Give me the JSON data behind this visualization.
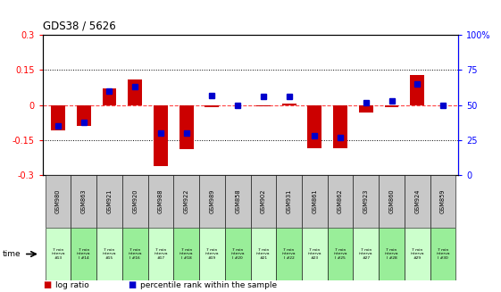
{
  "title": "GDS38 / 5626",
  "samples": [
    "GSM980",
    "GSM863",
    "GSM921",
    "GSM920",
    "GSM988",
    "GSM922",
    "GSM989",
    "GSM858",
    "GSM902",
    "GSM931",
    "GSM861",
    "GSM862",
    "GSM923",
    "GSM860",
    "GSM924",
    "GSM859"
  ],
  "time_labels": [
    "7 min\ninterva\n#13",
    "7 min\ninterva\nl #14",
    "7 min\ninterva\n#15",
    "7 min\ninterva\nl #16",
    "7 min\ninterva\n#17",
    "7 min\ninterva\nl #18",
    "7 min\ninterva\n#19",
    "7 min\ninterva\nl #20",
    "7 min\ninterva\n#21",
    "7 min\ninterva\nl #22",
    "7 min\ninterva\n#23",
    "7 min\ninterva\nl #25",
    "7 min\ninterva\n#27",
    "7 min\ninterva\nl #28",
    "7 min\ninterva\n#29",
    "7 min\ninterva\nl #30"
  ],
  "log_ratio": [
    -0.11,
    -0.09,
    0.07,
    0.11,
    -0.26,
    -0.19,
    -0.01,
    0.0,
    -0.005,
    0.005,
    -0.185,
    -0.185,
    -0.03,
    -0.01,
    0.13,
    0.0
  ],
  "percentile": [
    35,
    38,
    60,
    63,
    30,
    30,
    57,
    50,
    56,
    56,
    28,
    27,
    52,
    53,
    65,
    50
  ],
  "ylim": [
    -0.3,
    0.3
  ],
  "y2lim": [
    0,
    100
  ],
  "yticks": [
    -0.3,
    -0.15,
    0,
    0.15,
    0.3
  ],
  "y2ticks": [
    0,
    25,
    50,
    75,
    100
  ],
  "bar_color": "#cc0000",
  "dot_color": "#0000cc",
  "zero_line_color": "#ff4444",
  "grid_color": "#000000",
  "sample_bg": "#c8c8c8",
  "time_bg_light": "#ccffcc",
  "time_bg_dark": "#99ee99",
  "bar_width": 0.55,
  "dot_size": 5
}
